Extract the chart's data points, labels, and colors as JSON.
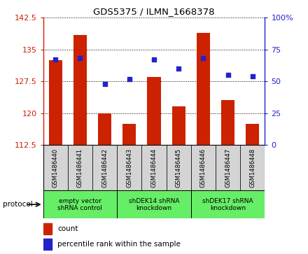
{
  "title": "GDS5375 / ILMN_1668378",
  "samples": [
    "GSM1486440",
    "GSM1486441",
    "GSM1486442",
    "GSM1486443",
    "GSM1486444",
    "GSM1486445",
    "GSM1486446",
    "GSM1486447",
    "GSM1486448"
  ],
  "count_values": [
    132.5,
    138.5,
    120.0,
    117.5,
    128.5,
    121.5,
    139.0,
    123.0,
    117.5
  ],
  "percentile_values": [
    67,
    68,
    48,
    52,
    67,
    60,
    68,
    55,
    54
  ],
  "ylim_left": [
    112.5,
    142.5
  ],
  "ylim_right": [
    0,
    100
  ],
  "yticks_left": [
    112.5,
    120.0,
    127.5,
    135.0,
    142.5
  ],
  "yticks_right": [
    0,
    25,
    50,
    75,
    100
  ],
  "bar_color": "#cc2200",
  "dot_color": "#2222cc",
  "grid_color": "#000000",
  "protocols": [
    {
      "label": "empty vector\nshRNA control",
      "start": 0,
      "end": 3
    },
    {
      "label": "shDEK14 shRNA\nknockdown",
      "start": 3,
      "end": 6
    },
    {
      "label": "shDEK17 shRNA\nknockdown",
      "start": 6,
      "end": 9
    }
  ],
  "protocol_label": "protocol",
  "legend_count_label": "count",
  "legend_pct_label": "percentile rank within the sample",
  "bar_width": 0.55,
  "background_color": "#ffffff",
  "plot_bg_color": "#ffffff",
  "tick_area_bg": "#d4d4d4",
  "proto_bg_color": "#66ee66"
}
